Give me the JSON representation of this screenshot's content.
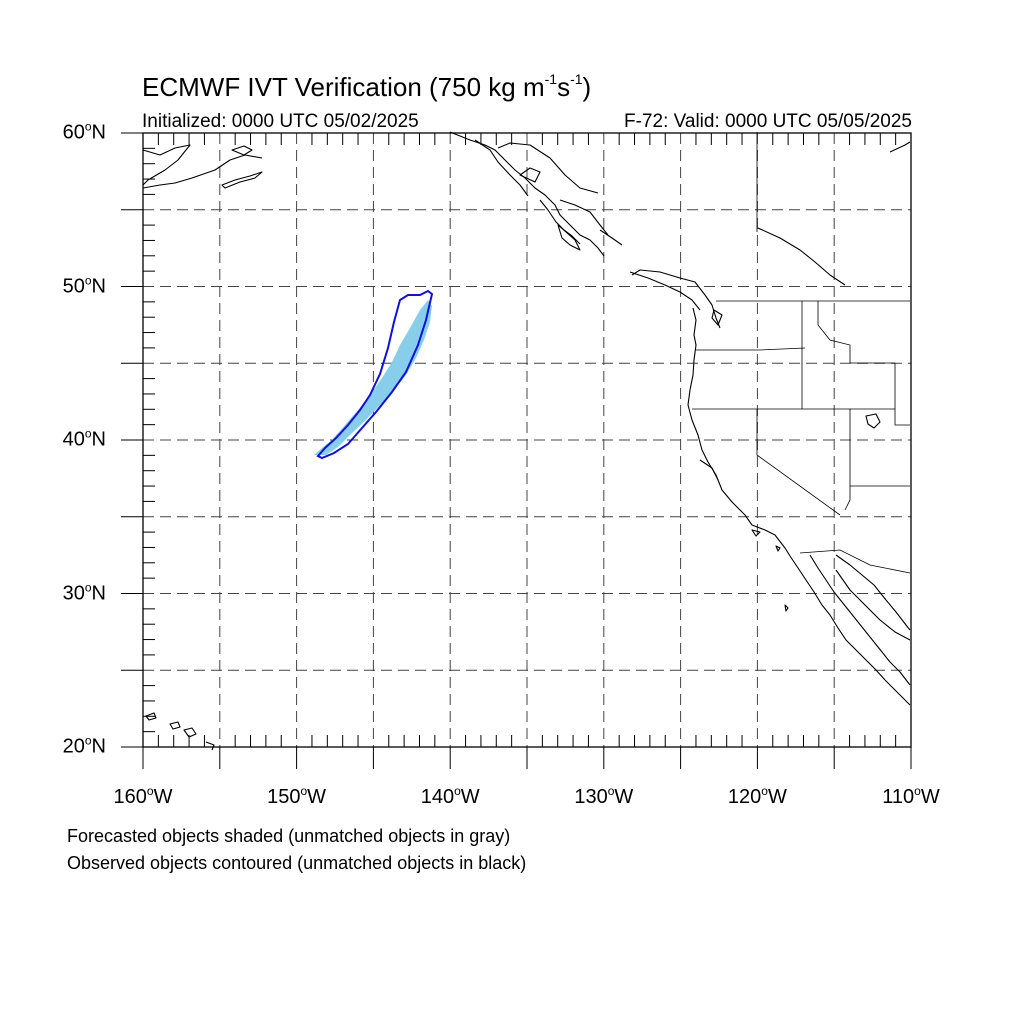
{
  "title": {
    "main": "ECMWF IVT Verification (750 kg m",
    "sup1": "-1",
    "mid": "s",
    "sup2": "-1",
    "close": ")"
  },
  "initialized": "Initialized: 0000 UTC 05/02/2025",
  "valid": "F-72: Valid: 0000 UTC 05/05/2025",
  "map": {
    "lon_range": [
      -160,
      -110
    ],
    "lat_range": [
      20,
      60
    ],
    "gridlines": "dashed",
    "lat_labels": [
      {
        "lat": 60,
        "text": "60",
        "hemi": "N"
      },
      {
        "lat": 50,
        "text": "50",
        "hemi": "N"
      },
      {
        "lat": 40,
        "text": "40",
        "hemi": "N"
      },
      {
        "lat": 30,
        "text": "30",
        "hemi": "N"
      },
      {
        "lat": 20,
        "text": "20",
        "hemi": "N"
      }
    ],
    "lon_labels": [
      {
        "lon": -160,
        "text": "160",
        "hemi": "W"
      },
      {
        "lon": -150,
        "text": "150",
        "hemi": "W"
      },
      {
        "lon": -140,
        "text": "140",
        "hemi": "W"
      },
      {
        "lon": -130,
        "text": "130",
        "hemi": "W"
      },
      {
        "lon": -120,
        "text": "120",
        "hemi": "W"
      },
      {
        "lon": -110,
        "text": "110",
        "hemi": "W"
      }
    ],
    "forecast_object_color": "#87ceeb",
    "observed_contour_color": "#1010dd"
  },
  "notes": {
    "line1": "Forecasted objects shaded (unmatched objects in gray)",
    "line2": "Observed objects contoured (unmatched objects in black)"
  }
}
